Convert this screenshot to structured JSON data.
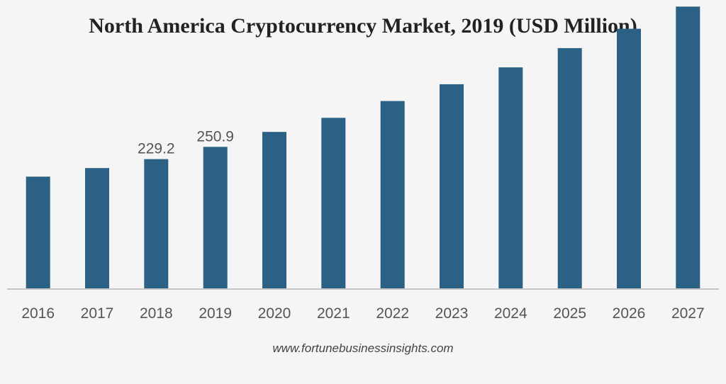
{
  "chart_data": {
    "type": "bar",
    "title": "North America Cryptocurrency Market, 2019 (USD Million)",
    "xlabel": "",
    "ylabel": "",
    "categories": [
      "2016",
      "2017",
      "2018",
      "2019",
      "2020",
      "2021",
      "2022",
      "2023",
      "2024",
      "2025",
      "2026",
      "2027"
    ],
    "values": [
      198.4,
      213.5,
      229.2,
      250.9,
      277.2,
      302.1,
      331.8,
      361.4,
      391.1,
      425.1,
      459.3,
      498.4
    ],
    "data_labels": [
      {
        "category": "2018",
        "text": "229.2"
      },
      {
        "category": "2019",
        "text": "250.9"
      }
    ],
    "ylim": [
      0,
      500
    ],
    "grid": false,
    "legend": "none",
    "bar_color": "#2a6185",
    "axis_color": "#c8c8c8"
  },
  "source": "www.fortunebusinessinsights.com"
}
